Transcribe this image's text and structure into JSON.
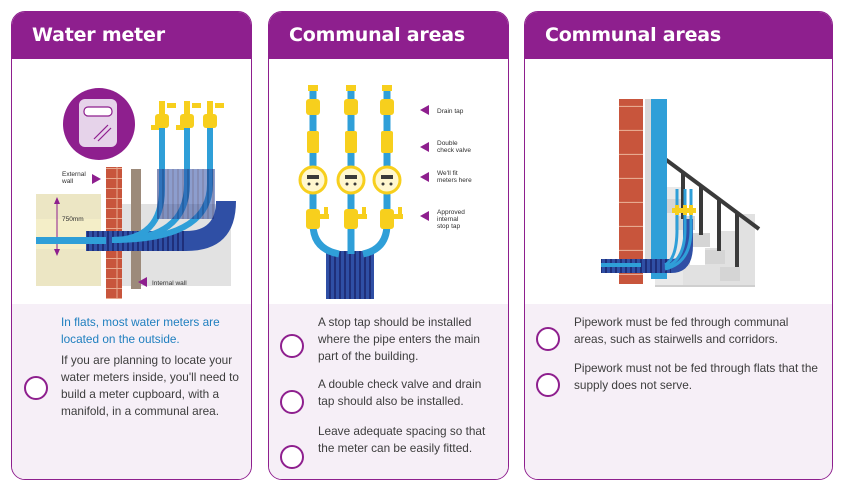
{
  "cards": [
    {
      "title": "Water meter",
      "labels": {
        "external_wall": "External wall",
        "measure": "750mm",
        "internal_wall": "Internal wall"
      },
      "highlight": "In flats, most water meters are located on the outside.",
      "body": "If you are planning to locate your water meters inside, you'll need to build a meter cupboard, with a manifold, in a communal area."
    },
    {
      "title": "Communal areas",
      "labels": {
        "drain_tap": "Drain tap",
        "double_check_valve": "Double check valve",
        "fit_meters": "We'll fit meters here",
        "stop_tap": "Approved internal stop tap"
      },
      "items": [
        "A stop tap should be installed where the pipe enters the main part of the building.",
        "A double check valve and drain tap should also be installed.",
        "Leave adequate spacing so that the meter can be easily fitted."
      ]
    },
    {
      "title": "Communal areas",
      "items": [
        "Pipework must be fed through communal areas, such as stairwells and corridors.",
        "Pipework must not be fed through flats that the supply does not serve."
      ]
    }
  ],
  "colors": {
    "purple": "#8e1f8e",
    "pipe_blue": "#2f9fd8",
    "fitting_yellow": "#f7cf1d",
    "brick": "#c8553c",
    "highlight_text": "#1f7fbf"
  }
}
